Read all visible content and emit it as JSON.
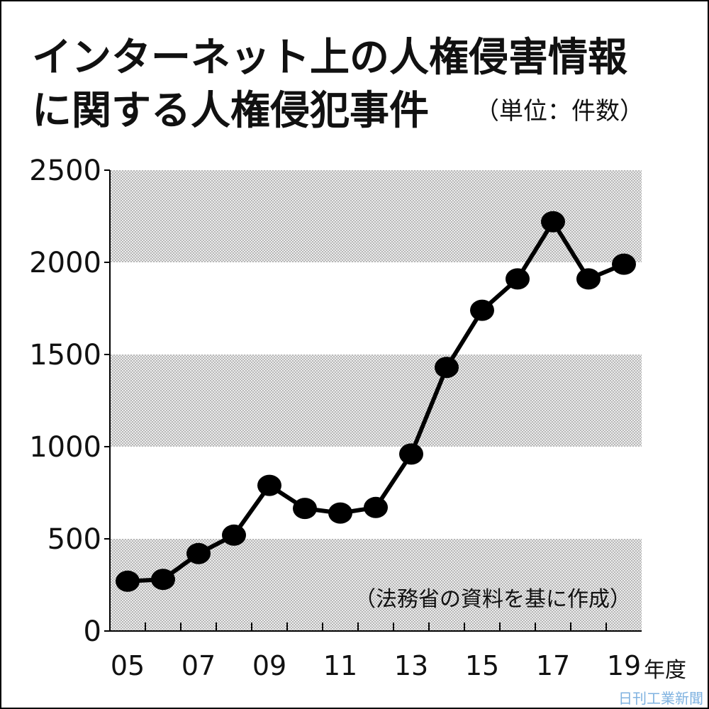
{
  "chart_data": {
    "type": "line",
    "title": [
      "インターネット上の人権侵害情報",
      "に関する人権侵犯事件"
    ],
    "subtitle": "（単位：件数）",
    "x_label": "年度",
    "annotation": "（法務省の資料を基に作成）",
    "source": "日刊工業新聞",
    "categories": [
      "05",
      null,
      "07",
      null,
      "09",
      null,
      "11",
      null,
      "13",
      null,
      "15",
      null,
      "17",
      null,
      "19"
    ],
    "values": [
      270,
      280,
      420,
      520,
      790,
      665,
      640,
      670,
      960,
      1430,
      1740,
      1910,
      2220,
      1910,
      1990
    ],
    "color": "#000000",
    "ylim": [
      0,
      2500
    ],
    "yticks": [
      0,
      500,
      1000,
      1500,
      2000,
      2500
    ],
    "band_color": "#d9d9d9",
    "banded": true
  }
}
